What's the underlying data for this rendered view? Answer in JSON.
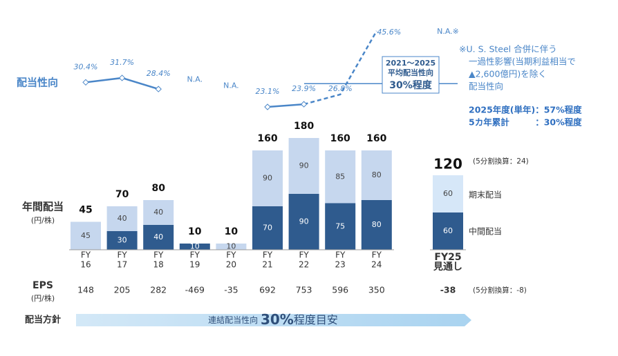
{
  "chart_data": {
    "type": "bar",
    "categories": [
      [
        "FY",
        "16"
      ],
      [
        "FY",
        "17"
      ],
      [
        "FY",
        "18"
      ],
      [
        "FY",
        "19"
      ],
      [
        "FY",
        "20"
      ],
      [
        "FY",
        "21"
      ],
      [
        "FY",
        "22"
      ],
      [
        "FY",
        "23"
      ],
      [
        "FY",
        "24"
      ],
      [
        "FY25",
        "見通し"
      ]
    ],
    "bar_axis_label": [
      "年間配当",
      "(円/株)"
    ],
    "series": [
      {
        "name": "中間配当",
        "color": "#2f5b8e",
        "values": [
          null,
          30,
          40,
          10,
          null,
          70,
          90,
          75,
          80,
          60
        ]
      },
      {
        "name": "期末配当",
        "color": "#c6d7ee",
        "values": [
          45,
          40,
          40,
          null,
          10,
          90,
          90,
          85,
          80,
          60
        ]
      }
    ],
    "totals": [
      45,
      70,
      80,
      10,
      10,
      160,
      180,
      160,
      160,
      120
    ],
    "total_note": "(5分割換算：24)",
    "payout": {
      "type": "line",
      "label": "配当性向",
      "color": "#4a86c8",
      "values": [
        30.4,
        31.7,
        28.4,
        null,
        null,
        23.1,
        23.9,
        26.8,
        45.6,
        null
      ],
      "value_labels": [
        "30.4%",
        "31.7%",
        "28.4%",
        "N.A.",
        "N.A.",
        "23.1%",
        "23.9%",
        "26.8%",
        "45.6%",
        "N.A.※"
      ],
      "dash_start_index": 6,
      "reference_line": 30,
      "reference_box": [
        "2021～2025",
        "平均配当性向",
        "30%程度"
      ]
    },
    "notes": [
      "※U. S. Steel 合併に伴う",
      "一過性影響(当期利益相当で",
      "▲2,600億円)を除く",
      "配当性向"
    ],
    "highlights": [
      "2025年度(単年)：57%程度",
      "5カ年累計　　　：30%程度"
    ],
    "eps": {
      "label": [
        "EPS",
        "(円/株)"
      ],
      "values": [
        148,
        205,
        282,
        -469,
        -35,
        692,
        753,
        596,
        350,
        -38
      ],
      "note": "(5分割換算：-8)"
    },
    "policy": {
      "label": "配当方針",
      "text": [
        "連結配当性向 ",
        "30%",
        "程度目安"
      ]
    }
  }
}
